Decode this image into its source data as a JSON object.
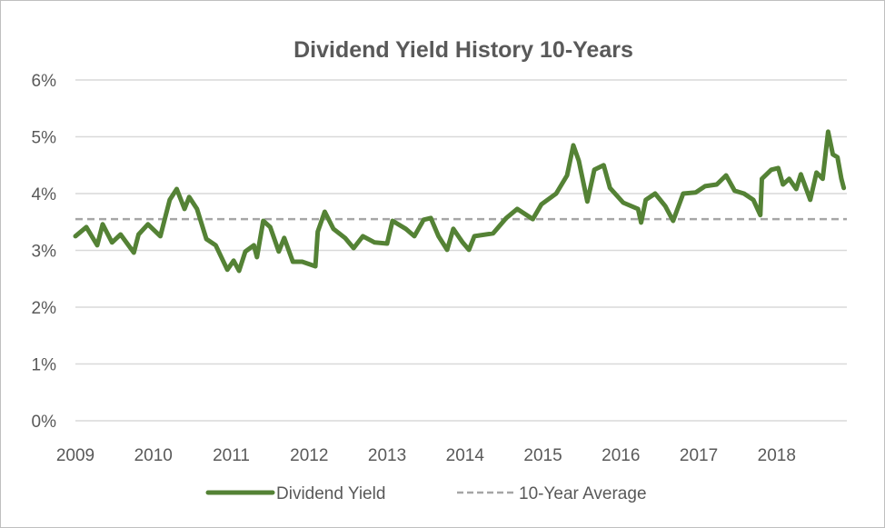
{
  "chart_data": {
    "type": "line",
    "title": "Dividend Yield History 10-Years",
    "xlabel": "",
    "ylabel": "",
    "xlim": [
      2009,
      2018.9
    ],
    "ylim": [
      0,
      6
    ],
    "x_ticks": [
      "2009",
      "2010",
      "2011",
      "2012",
      "2013",
      "2014",
      "2015",
      "2016",
      "2017",
      "2018"
    ],
    "y_ticks": [
      "0%",
      "1%",
      "2%",
      "3%",
      "4%",
      "5%",
      "6%"
    ],
    "grid": "horizontal",
    "legend_position": "bottom",
    "series": [
      {
        "name": "Dividend Yield",
        "color": "#548235",
        "style": "solid",
        "x": [
          2009.0,
          2009.14,
          2009.28,
          2009.35,
          2009.47,
          2009.58,
          2009.75,
          2009.81,
          2009.93,
          2010.09,
          2010.21,
          2010.3,
          2010.4,
          2010.46,
          2010.56,
          2010.68,
          2010.8,
          2010.95,
          2011.03,
          2011.1,
          2011.18,
          2011.29,
          2011.33,
          2011.41,
          2011.5,
          2011.61,
          2011.68,
          2011.79,
          2011.91,
          2012.08,
          2012.11,
          2012.2,
          2012.31,
          2012.46,
          2012.57,
          2012.69,
          2012.84,
          2013.0,
          2013.07,
          2013.24,
          2013.35,
          2013.47,
          2013.56,
          2013.66,
          2013.77,
          2013.85,
          2013.97,
          2014.05,
          2014.12,
          2014.36,
          2014.53,
          2014.67,
          2014.87,
          2014.98,
          2015.17,
          2015.31,
          2015.39,
          2015.46,
          2015.57,
          2015.66,
          2015.78,
          2015.86,
          2016.03,
          2016.22,
          2016.26,
          2016.32,
          2016.44,
          2016.57,
          2016.67,
          2016.8,
          2016.96,
          2017.08,
          2017.23,
          2017.35,
          2017.46,
          2017.58,
          2017.7,
          2017.79,
          2017.81,
          2017.93,
          2018.02,
          2018.08,
          2018.16,
          2018.25,
          2018.31,
          2018.43,
          2018.51,
          2018.59,
          2018.66,
          2018.72,
          2018.78,
          2018.83,
          2018.86
        ],
        "y": [
          3.25,
          3.41,
          3.09,
          3.46,
          3.14,
          3.28,
          2.96,
          3.28,
          3.46,
          3.25,
          3.89,
          4.08,
          3.73,
          3.94,
          3.73,
          3.2,
          3.09,
          2.66,
          2.82,
          2.64,
          2.98,
          3.09,
          2.88,
          3.52,
          3.41,
          2.98,
          3.22,
          2.8,
          2.8,
          2.72,
          3.33,
          3.68,
          3.38,
          3.22,
          3.04,
          3.25,
          3.14,
          3.12,
          3.52,
          3.38,
          3.25,
          3.54,
          3.57,
          3.25,
          3.01,
          3.38,
          3.14,
          3.01,
          3.25,
          3.3,
          3.57,
          3.73,
          3.55,
          3.81,
          4.0,
          4.32,
          4.85,
          4.58,
          3.86,
          4.42,
          4.5,
          4.1,
          3.84,
          3.73,
          3.49,
          3.89,
          4.0,
          3.78,
          3.52,
          4.0,
          4.02,
          4.13,
          4.16,
          4.32,
          4.05,
          4.0,
          3.89,
          3.62,
          4.26,
          4.42,
          4.45,
          4.16,
          4.26,
          4.08,
          4.34,
          3.89,
          4.37,
          4.26,
          5.09,
          4.69,
          4.64,
          4.26,
          4.1
        ]
      },
      {
        "name": "10-Year Average",
        "color": "#a6a6a6",
        "style": "dashed",
        "x": [
          2009,
          2018.9
        ],
        "y": [
          3.55,
          3.55
        ]
      }
    ]
  }
}
